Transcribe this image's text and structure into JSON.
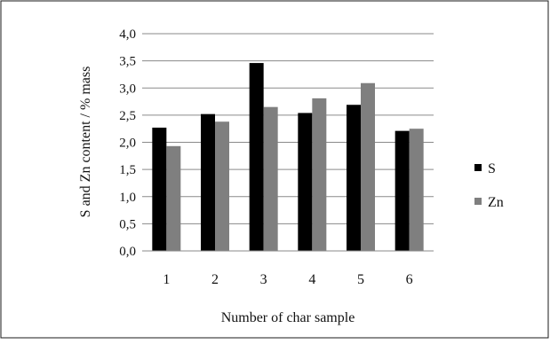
{
  "chart_data": {
    "type": "bar",
    "title": "",
    "xlabel": "Number of char sample",
    "ylabel": "S and Zn content / % mass",
    "categories": [
      "1",
      "2",
      "3",
      "4",
      "5",
      "6"
    ],
    "ylim": [
      0,
      4.0
    ],
    "yticks": [
      "0,0",
      "0,5",
      "1,0",
      "1,5",
      "2,0",
      "2,5",
      "3,0",
      "3,5",
      "4,0"
    ],
    "grid": true,
    "legend": "right",
    "series": [
      {
        "name": "S",
        "color": "#000000",
        "values": [
          2.27,
          2.52,
          3.46,
          2.54,
          2.69,
          2.21
        ]
      },
      {
        "name": "Zn",
        "color": "#7f7f7f",
        "values": [
          1.93,
          2.38,
          2.65,
          2.81,
          3.09,
          2.25
        ]
      }
    ]
  }
}
